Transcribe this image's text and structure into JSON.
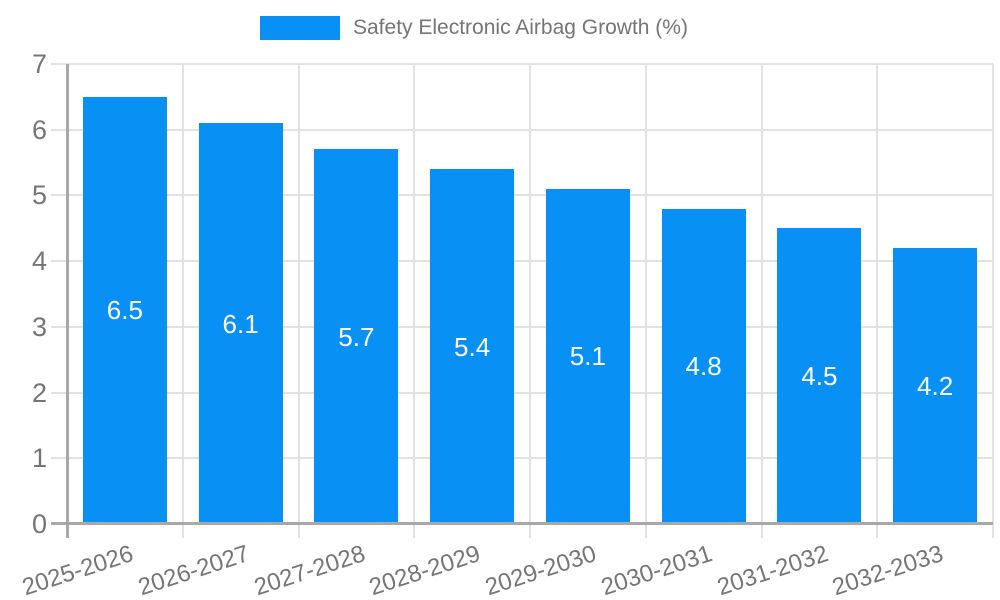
{
  "chart_data": {
    "type": "bar",
    "title": "Safety Electronic Airbag Growth (%)",
    "legend": [
      "Safety Electronic Airbag Growth (%)"
    ],
    "legend_position": "top",
    "categories": [
      "2025-2026",
      "2026-2027",
      "2027-2028",
      "2028-2029",
      "2029-2030",
      "2030-2031",
      "2031-2032",
      "2032-2033"
    ],
    "values": [
      6.5,
      6.1,
      5.7,
      5.4,
      5.1,
      4.8,
      4.5,
      4.2
    ],
    "xlabel": "",
    "ylabel": "",
    "ylim": [
      0,
      7
    ],
    "yticks": [
      0,
      1,
      2,
      3,
      4,
      5,
      6,
      7
    ],
    "grid": true,
    "bar_color": "#0890f5",
    "grid_color": "#e2e2e2",
    "axis_color": "#a8a8a8",
    "text_color": "#757575",
    "value_label_color": "#ffffff"
  }
}
